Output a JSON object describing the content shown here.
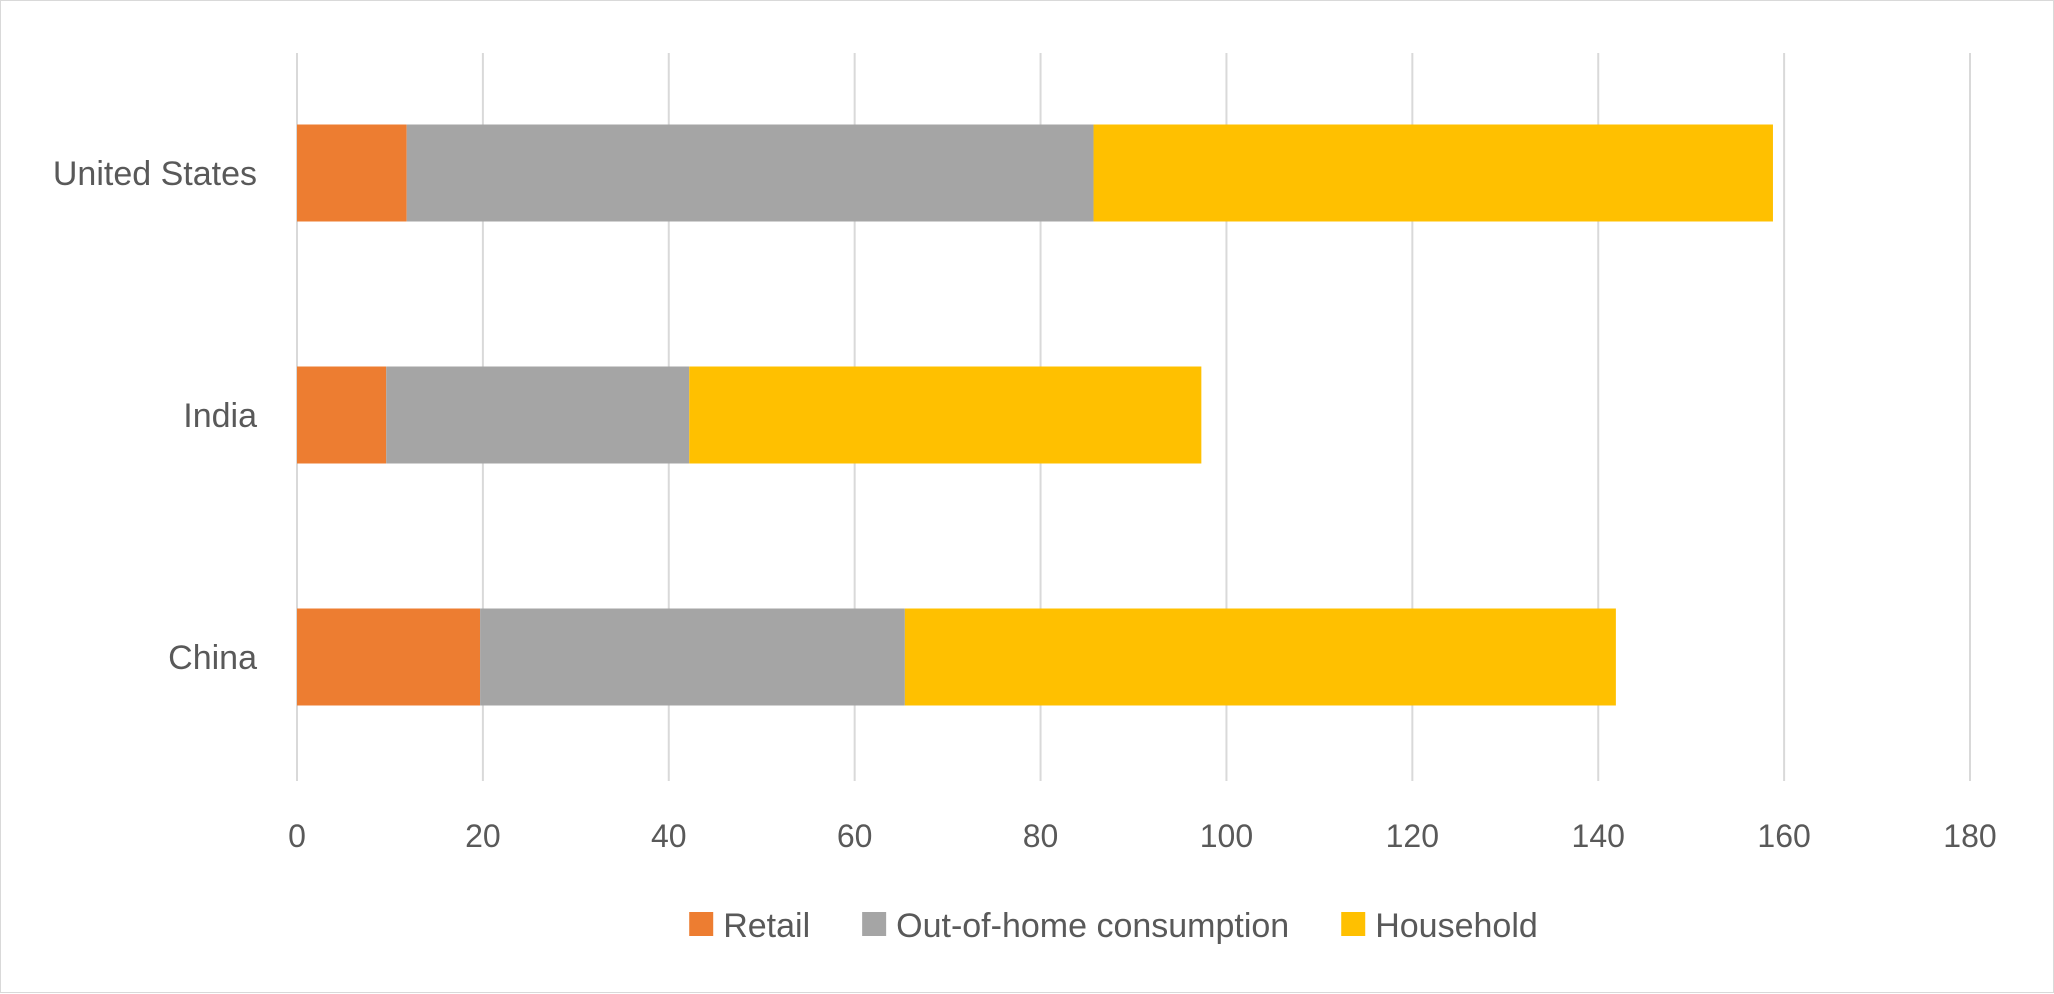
{
  "chart_data": {
    "type": "bar",
    "orientation": "horizontal",
    "stacked": true,
    "categories": [
      "China",
      "India",
      "United States"
    ],
    "series": [
      {
        "name": "Retail",
        "color": "#ED7D31",
        "values": [
          19.7,
          9.6,
          11.8
        ]
      },
      {
        "name": "Out-of-home consumption",
        "color": "#A5A5A5",
        "values": [
          45.7,
          32.6,
          73.9
        ]
      },
      {
        "name": "Household",
        "color": "#FFC000",
        "values": [
          76.5,
          55.1,
          73.1
        ]
      }
    ],
    "xlim": [
      0,
      180
    ],
    "xticks": [
      "0",
      "20",
      "40",
      "60",
      "80",
      "100",
      "120",
      "140",
      "160",
      "180"
    ],
    "grid": "vertical",
    "legend": "bottom",
    "title": "",
    "xlabel": "",
    "ylabel": ""
  }
}
